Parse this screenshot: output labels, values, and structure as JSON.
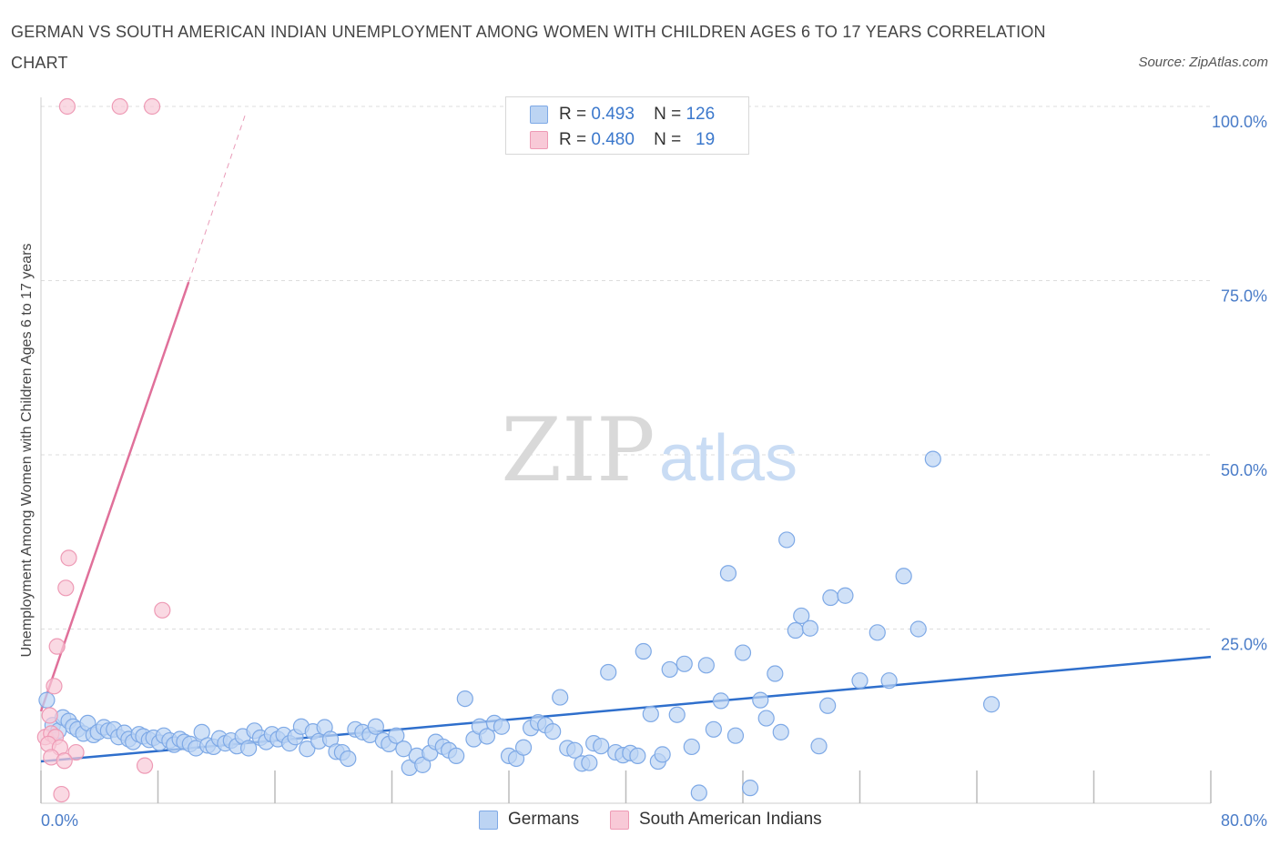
{
  "title": "GERMAN VS SOUTH AMERICAN INDIAN UNEMPLOYMENT AMONG WOMEN WITH CHILDREN AGES 6 TO 17 YEARS CORRELATION CHART",
  "source": "Source: ZipAtlas.com",
  "watermark": {
    "zip": "ZIP",
    "atlas": "atlas"
  },
  "legend": {
    "rows": [
      {
        "r_label": "R =",
        "r_value": "0.493",
        "n_label": "N =",
        "n_value": "126",
        "color": "#a9c8f0"
      },
      {
        "r_label": "R =",
        "r_value": "0.480",
        "n_label": "N =",
        "n_value": "19",
        "color": "#f6b8c9"
      }
    ]
  },
  "chart_data": {
    "type": "scatter",
    "ylabel": "Unemployment Among Women with Children Ages 6 to 17 years",
    "xlim": [
      0,
      80
    ],
    "ylim": [
      0,
      100
    ],
    "x_tick_labels": [
      "0.0%",
      "80.0%"
    ],
    "y_ticks": [
      25,
      50,
      75,
      100
    ],
    "y_tick_labels": [
      "25.0%",
      "50.0%",
      "75.0%",
      "100.0%"
    ],
    "grid": true,
    "legend_position": "top-center",
    "series": [
      {
        "name": "Germans",
        "color": "#7ea9e6",
        "fill": "#bcd4f3",
        "line_color": "#2f6fcc",
        "trend": {
          "x": [
            0,
            80
          ],
          "y": [
            6.0,
            21.0
          ]
        },
        "points": [
          [
            0.4,
            14.8
          ],
          [
            0.8,
            11.2
          ],
          [
            1.2,
            10.4
          ],
          [
            1.5,
            12.3
          ],
          [
            1.9,
            11.8
          ],
          [
            2.2,
            11.0
          ],
          [
            2.5,
            10.6
          ],
          [
            2.9,
            10.0
          ],
          [
            3.2,
            11.5
          ],
          [
            3.6,
            9.8
          ],
          [
            3.9,
            10.2
          ],
          [
            4.3,
            10.9
          ],
          [
            4.6,
            10.4
          ],
          [
            5.0,
            10.6
          ],
          [
            5.3,
            9.5
          ],
          [
            5.7,
            10.1
          ],
          [
            6.0,
            9.2
          ],
          [
            6.3,
            8.8
          ],
          [
            6.7,
            9.9
          ],
          [
            7.0,
            9.6
          ],
          [
            7.4,
            9.1
          ],
          [
            7.7,
            9.4
          ],
          [
            8.1,
            8.7
          ],
          [
            8.4,
            9.7
          ],
          [
            8.8,
            9.0
          ],
          [
            9.1,
            8.4
          ],
          [
            9.5,
            9.2
          ],
          [
            9.8,
            8.8
          ],
          [
            10.2,
            8.5
          ],
          [
            10.6,
            7.9
          ],
          [
            11.0,
            10.2
          ],
          [
            11.4,
            8.3
          ],
          [
            11.8,
            8.1
          ],
          [
            12.2,
            9.3
          ],
          [
            12.6,
            8.6
          ],
          [
            13.0,
            9.0
          ],
          [
            13.4,
            8.2
          ],
          [
            13.8,
            9.6
          ],
          [
            14.2,
            7.9
          ],
          [
            14.6,
            10.4
          ],
          [
            15.0,
            9.4
          ],
          [
            15.4,
            8.8
          ],
          [
            15.8,
            9.9
          ],
          [
            16.2,
            9.2
          ],
          [
            16.6,
            9.8
          ],
          [
            17.0,
            8.6
          ],
          [
            17.4,
            9.5
          ],
          [
            17.8,
            11.0
          ],
          [
            18.2,
            7.8
          ],
          [
            18.6,
            10.3
          ],
          [
            19.0,
            8.9
          ],
          [
            19.4,
            10.9
          ],
          [
            19.8,
            9.2
          ],
          [
            20.2,
            7.4
          ],
          [
            20.6,
            7.3
          ],
          [
            21.0,
            6.4
          ],
          [
            21.5,
            10.6
          ],
          [
            22.0,
            10.2
          ],
          [
            22.5,
            9.8
          ],
          [
            22.9,
            11.0
          ],
          [
            23.4,
            9.0
          ],
          [
            23.8,
            8.5
          ],
          [
            24.3,
            9.7
          ],
          [
            24.8,
            7.8
          ],
          [
            25.2,
            5.1
          ],
          [
            25.7,
            6.8
          ],
          [
            26.1,
            5.5
          ],
          [
            26.6,
            7.2
          ],
          [
            27.0,
            8.8
          ],
          [
            27.5,
            8.1
          ],
          [
            27.9,
            7.6
          ],
          [
            28.4,
            6.8
          ],
          [
            29.0,
            15.0
          ],
          [
            29.6,
            9.2
          ],
          [
            30.0,
            11.0
          ],
          [
            30.5,
            9.6
          ],
          [
            31.0,
            11.5
          ],
          [
            31.5,
            11.0
          ],
          [
            32.0,
            6.8
          ],
          [
            32.5,
            6.4
          ],
          [
            33.0,
            8.0
          ],
          [
            33.5,
            10.8
          ],
          [
            34.0,
            11.6
          ],
          [
            34.5,
            11.2
          ],
          [
            35.0,
            10.3
          ],
          [
            35.5,
            15.2
          ],
          [
            36.0,
            7.9
          ],
          [
            36.5,
            7.6
          ],
          [
            37.0,
            5.7
          ],
          [
            37.5,
            5.8
          ],
          [
            37.8,
            8.6
          ],
          [
            38.3,
            8.2
          ],
          [
            38.8,
            18.8
          ],
          [
            39.3,
            7.3
          ],
          [
            39.8,
            6.9
          ],
          [
            40.3,
            7.2
          ],
          [
            40.8,
            6.8
          ],
          [
            41.2,
            21.8
          ],
          [
            41.7,
            12.8
          ],
          [
            42.2,
            6.0
          ],
          [
            42.5,
            7.0
          ],
          [
            43.0,
            19.2
          ],
          [
            43.5,
            12.7
          ],
          [
            44.0,
            20.0
          ],
          [
            44.5,
            8.1
          ],
          [
            45.0,
            1.5
          ],
          [
            45.5,
            19.8
          ],
          [
            46.0,
            10.6
          ],
          [
            46.5,
            14.7
          ],
          [
            47.0,
            33.0
          ],
          [
            47.5,
            9.7
          ],
          [
            48.0,
            21.6
          ],
          [
            48.5,
            2.2
          ],
          [
            49.2,
            14.8
          ],
          [
            49.6,
            12.2
          ],
          [
            50.2,
            18.6
          ],
          [
            50.6,
            10.2
          ],
          [
            51.0,
            37.8
          ],
          [
            51.6,
            24.8
          ],
          [
            52.0,
            26.9
          ],
          [
            52.6,
            25.1
          ],
          [
            53.2,
            8.2
          ],
          [
            53.8,
            14.0
          ],
          [
            54.0,
            29.5
          ],
          [
            55.0,
            29.8
          ],
          [
            56.0,
            17.6
          ],
          [
            57.2,
            24.5
          ],
          [
            58.0,
            17.6
          ],
          [
            59.0,
            32.6
          ],
          [
            60.0,
            25.0
          ],
          [
            61.0,
            49.4
          ],
          [
            65.0,
            14.2
          ]
        ]
      },
      {
        "name": "South American Indians",
        "color": "#ee9ab5",
        "fill": "#f8c9d7",
        "line_color": "#e0709a",
        "trend": {
          "x": [
            0,
            10.1
          ],
          "y": [
            13.2,
            74.8
          ]
        },
        "trend_extension": {
          "x": [
            10.1,
            14.0
          ],
          "y": [
            74.8,
            99.0
          ]
        },
        "points": [
          [
            1.8,
            100
          ],
          [
            5.4,
            100
          ],
          [
            7.6,
            100
          ],
          [
            1.9,
            35.2
          ],
          [
            1.7,
            30.9
          ],
          [
            8.3,
            27.7
          ],
          [
            1.1,
            22.5
          ],
          [
            0.9,
            16.8
          ],
          [
            0.6,
            12.6
          ],
          [
            0.3,
            9.5
          ],
          [
            0.7,
            10.0
          ],
          [
            1.0,
            9.5
          ],
          [
            0.5,
            8.5
          ],
          [
            1.3,
            8.0
          ],
          [
            2.4,
            7.3
          ],
          [
            0.7,
            6.6
          ],
          [
            1.6,
            6.1
          ],
          [
            7.1,
            5.4
          ],
          [
            1.4,
            1.3
          ]
        ]
      }
    ]
  }
}
